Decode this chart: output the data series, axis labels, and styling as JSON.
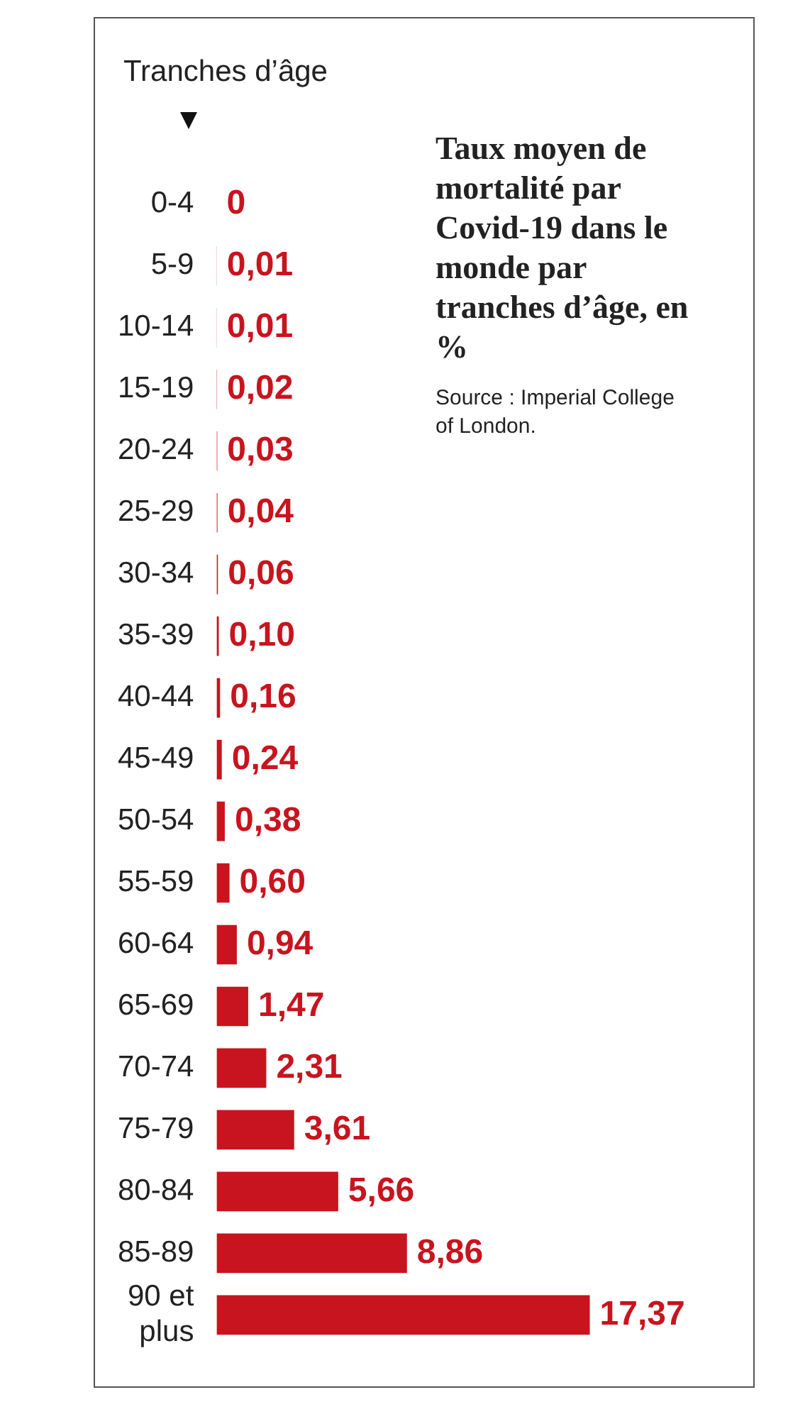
{
  "chart_data": {
    "type": "bar",
    "orientation": "horizontal",
    "title": "Taux moyen de mortalité par Covid-19 dans le monde par tranches d’âge, en %",
    "ylabel": "Tranches d’âge",
    "annotations": [
      "Source : Imperial College of London."
    ],
    "categories": [
      "0-4",
      "5-9",
      "10-14",
      "15-19",
      "20-24",
      "25-29",
      "30-34",
      "35-39",
      "40-44",
      "45-49",
      "50-54",
      "55-59",
      "60-64",
      "65-69",
      "70-74",
      "75-79",
      "80-84",
      "85-89",
      "90 et plus"
    ],
    "values": [
      0,
      0.01,
      0.01,
      0.02,
      0.03,
      0.04,
      0.06,
      0.1,
      0.16,
      0.24,
      0.38,
      0.6,
      0.94,
      1.47,
      2.31,
      3.61,
      5.66,
      8.86,
      17.37
    ],
    "value_labels": [
      "0",
      "0,01",
      "0,01",
      "0,02",
      "0,03",
      "0,04",
      "0,06",
      "0,10",
      "0,16",
      "0,24",
      "0,38",
      "0,60",
      "0,94",
      "1,47",
      "2,31",
      "3,61",
      "5,66",
      "8,86",
      "17,37"
    ],
    "color": "#c8141e",
    "legend": false
  }
}
